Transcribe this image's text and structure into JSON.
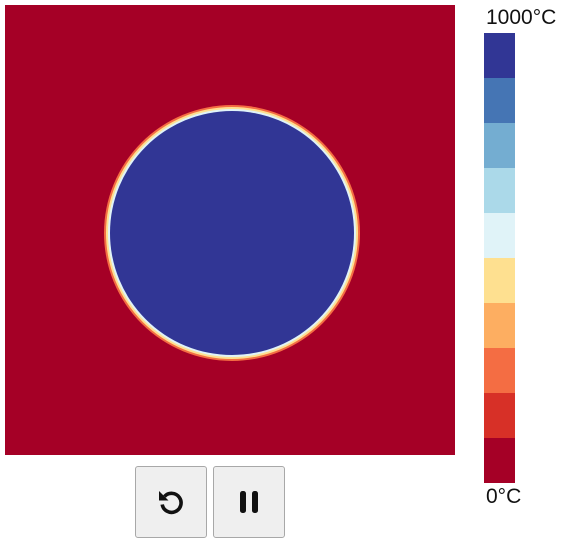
{
  "legend": {
    "max_label": "1000°C",
    "min_label": "0°C",
    "colors_top_to_bottom": [
      "#313695",
      "#4575b4",
      "#74add1",
      "#abd9e9",
      "#e0f3f8",
      "#fee090",
      "#fdae61",
      "#f46d43",
      "#d73027",
      "#a50026"
    ]
  },
  "simulation": {
    "background_color": "#a50026",
    "hot_color": "#313695"
  },
  "controls": {
    "reset_icon": "reset-icon",
    "pause_icon": "pause-icon"
  }
}
